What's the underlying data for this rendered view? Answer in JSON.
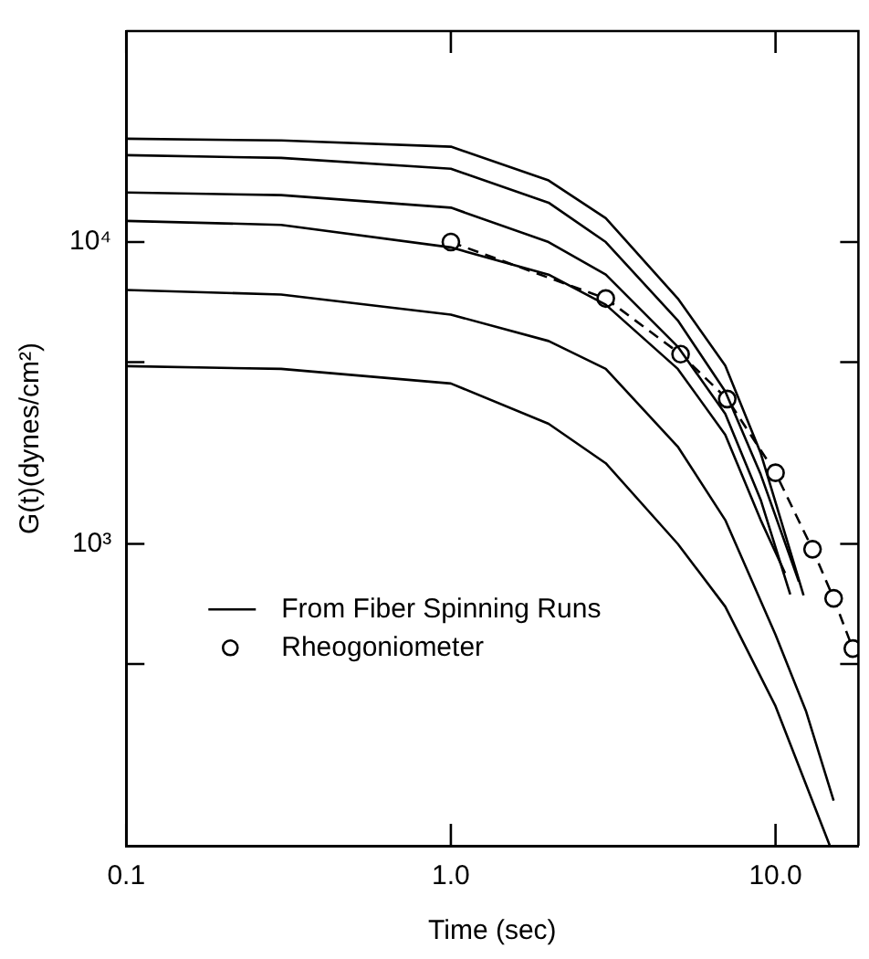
{
  "chart_data": {
    "type": "line",
    "xlabel": "Time (sec)",
    "ylabel": "G(t)(dynes/cm²)",
    "log": "xy",
    "grid": false,
    "legend": "bottom left",
    "xlim": [
      0.1,
      18
    ],
    "xticks": [
      {
        "value": 0.1,
        "label": "0.1"
      },
      {
        "value": 1,
        "label": "1.0"
      },
      {
        "value": 10,
        "label": "10.0"
      }
    ],
    "ylim": [
      100,
      50000
    ],
    "yticks": [
      {
        "value": 400,
        "label": null
      },
      {
        "value": 1000,
        "label": "10³"
      },
      {
        "value": 4000,
        "label": null
      },
      {
        "value": 10000,
        "label": "10⁴"
      }
    ],
    "series": [
      {
        "name": "From Fiber Spinning Runs",
        "color": "#000000",
        "marker": "none",
        "line_style": "solid",
        "x": [
          0.1,
          0.3,
          1,
          2,
          3,
          5,
          7,
          9,
          12.2
        ],
        "values": [
          22000,
          21700,
          20700,
          16000,
          12000,
          6500,
          3900,
          2000,
          675
        ]
      },
      {
        "color": "#000000",
        "marker": "none",
        "line_style": "solid",
        "x": [
          0.1,
          0.3,
          1,
          2,
          3,
          5,
          7,
          9,
          11.8
        ],
        "values": [
          19400,
          19000,
          17500,
          13500,
          10000,
          5500,
          3200,
          1700,
          750
        ]
      },
      {
        "color": "#000000",
        "marker": "none",
        "line_style": "solid",
        "x": [
          0.1,
          0.3,
          1,
          2,
          3,
          5,
          7,
          9,
          11.1
        ],
        "values": [
          14600,
          14300,
          13000,
          10000,
          7800,
          4500,
          2700,
          1400,
          680
        ]
      },
      {
        "color": "#000000",
        "marker": "none",
        "line_style": "solid",
        "x": [
          0.1,
          0.3,
          1,
          2,
          3,
          5,
          7,
          9,
          10.7
        ],
        "values": [
          11750,
          11400,
          9600,
          7800,
          6200,
          3800,
          2300,
          1200,
          800
        ]
      },
      {
        "color": "#000000",
        "marker": "none",
        "line_style": "solid",
        "x": [
          0.1,
          0.3,
          1,
          2,
          3,
          5,
          7,
          10,
          12.4,
          15.1
        ],
        "values": [
          6940,
          6700,
          5750,
          4700,
          3800,
          2100,
          1200,
          500,
          280,
          141
        ]
      },
      {
        "color": "#000000",
        "marker": "none",
        "line_style": "solid",
        "x": [
          0.1,
          0.3,
          1,
          2,
          3,
          5,
          7,
          10,
          14.7
        ],
        "values": [
          3880,
          3800,
          3400,
          2500,
          1850,
          1000,
          620,
          290,
          100
        ]
      },
      {
        "name": "Rheogoniometer",
        "color": "#000000",
        "marker": "circle",
        "line_style": "dashed",
        "x": [
          1,
          3,
          5.1,
          7.1,
          10,
          13,
          15.1,
          17.3
        ],
        "values": [
          10000,
          6500,
          4250,
          3020,
          1720,
          960,
          660,
          450
        ]
      }
    ]
  }
}
